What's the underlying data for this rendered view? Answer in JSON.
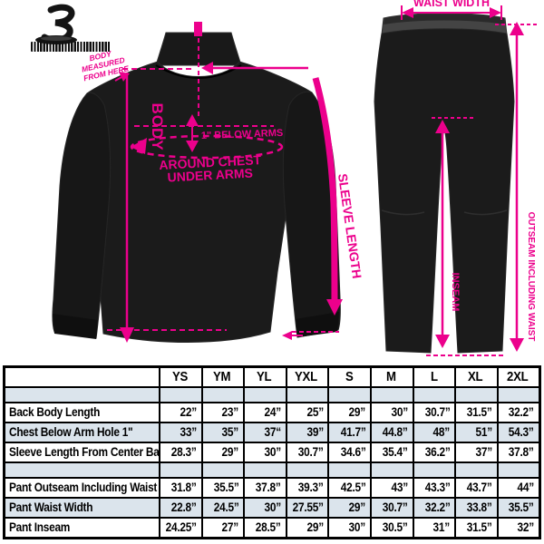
{
  "colors": {
    "accent": "#EC008C",
    "garment": "#1b1b1b",
    "table_stripe": "#dbe4ec",
    "table_border": "#000000",
    "background": "#ffffff"
  },
  "diagram": {
    "jacket": {
      "body_label": "BODY",
      "below_arms_label": "1\" BELOW ARMS",
      "around_chest_line1": "AROUND CHEST",
      "around_chest_line2": "UNDER ARMS",
      "measured_note_line1": "BODY",
      "measured_note_line2": "MEASURED",
      "measured_note_line3": "FROM HERE",
      "sleeve_label": "SLEEVE LENGTH"
    },
    "pants": {
      "waist_label": "WAIST WIDTH",
      "outseam_label": "OUTSEAM INCLUDING WAIST",
      "inseam_label": "INSEAM"
    }
  },
  "size_chart": {
    "columns": [
      "YS",
      "YM",
      "YL",
      "YXL",
      "S",
      "M",
      "L",
      "XL",
      "2XL"
    ],
    "jacket_rows": [
      {
        "label": "Back Body Length",
        "values": [
          "22”",
          "23”",
          "24”",
          "25”",
          "29”",
          "30”",
          "30.7”",
          "31.5”",
          "32.2”"
        ]
      },
      {
        "label": "Chest Below Arm Hole 1\"",
        "values": [
          "33”",
          "35”",
          "37“",
          "39”",
          "41.7”",
          "44.8”",
          "48”",
          "51”",
          "54.3”"
        ]
      },
      {
        "label": "Sleeve Length From Center Back",
        "values": [
          "28.3”",
          "29”",
          "30”",
          "30.7”",
          "34.6”",
          "35.4”",
          "36.2”",
          "37”",
          "37.8”"
        ]
      }
    ],
    "pant_rows": [
      {
        "label": "Pant Outseam Including Waist",
        "values": [
          "31.8”",
          "35.5”",
          "37.8”",
          "39.3”",
          "42.5”",
          "43”",
          "43.3”",
          "43.7”",
          "44”"
        ]
      },
      {
        "label": "Pant Waist Width",
        "values": [
          "22.8”",
          "24.5”",
          "30”",
          "27.55”",
          "29”",
          "30.7”",
          "32.2”",
          "33.8”",
          "35.5”"
        ]
      },
      {
        "label": "Pant Inseam",
        "values": [
          "24.25”",
          "27”",
          "28.5”",
          "29”",
          "30”",
          "30.5”",
          "31”",
          "31.5”",
          "32”"
        ]
      }
    ]
  }
}
